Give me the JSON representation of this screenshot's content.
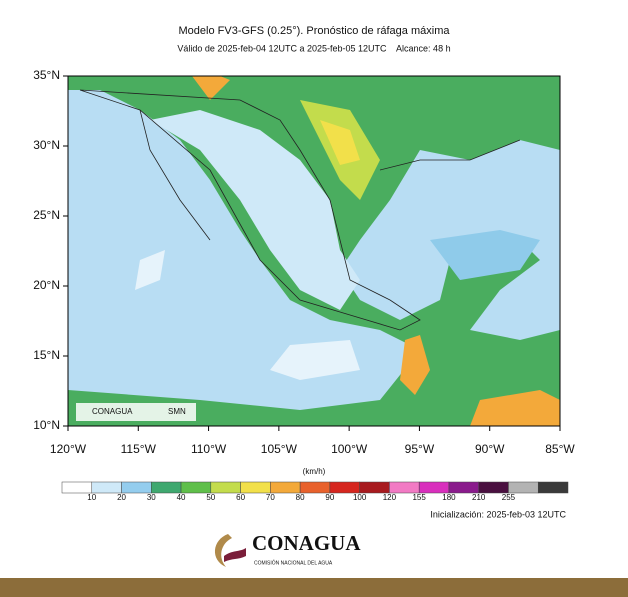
{
  "map": {
    "title": "Modelo FV3-GFS (0.25°). Pronóstico de ráfaga máxima",
    "subtitle": "Válido de 2025-feb-04 12UTC a 2025-feb-05 12UTC    Alcance: 48 h",
    "lon_range": [
      -120,
      -85
    ],
    "lat_range": [
      10,
      35
    ],
    "lat_ticks": [
      {
        "value": 35,
        "label": "35°N"
      },
      {
        "value": 30,
        "label": "30°N"
      },
      {
        "value": 25,
        "label": "25°N"
      },
      {
        "value": 20,
        "label": "20°N"
      },
      {
        "value": 15,
        "label": "15°N"
      },
      {
        "value": 10,
        "label": "10°N"
      }
    ],
    "lon_ticks": [
      {
        "value": -120,
        "label": "120°W"
      },
      {
        "value": -115,
        "label": "115°W"
      },
      {
        "value": -110,
        "label": "110°W"
      },
      {
        "value": -105,
        "label": "105°W"
      },
      {
        "value": -100,
        "label": "100°W"
      },
      {
        "value": -95,
        "label": "95°W"
      },
      {
        "value": -90,
        "label": "90°W"
      },
      {
        "value": -85,
        "label": "85°W"
      }
    ],
    "inset_logos": [
      "CONAGUA",
      "SMN"
    ]
  },
  "colorbar": {
    "unit": "(km/h)",
    "colors": [
      "#ffffff",
      "#cfe9f8",
      "#94cdee",
      "#3fa86f",
      "#5fbf4a",
      "#c3dc4c",
      "#f2e04a",
      "#f3a93a",
      "#e8612c",
      "#d6261f",
      "#a81a1f",
      "#f27ac4",
      "#d92fbd",
      "#8a1b8c",
      "#4a1040",
      "#b3b3b3",
      "#3a3a3a"
    ],
    "ticks": [
      10,
      20,
      30,
      40,
      50,
      60,
      70,
      80,
      90,
      100,
      120,
      155,
      180,
      210,
      255
    ]
  },
  "footer": {
    "init": "Inicialización: 2025-feb-03 12UTC",
    "logo": "CONAGUA",
    "logo_sub": "COMISIÓN NACIONAL DEL AGUA"
  }
}
